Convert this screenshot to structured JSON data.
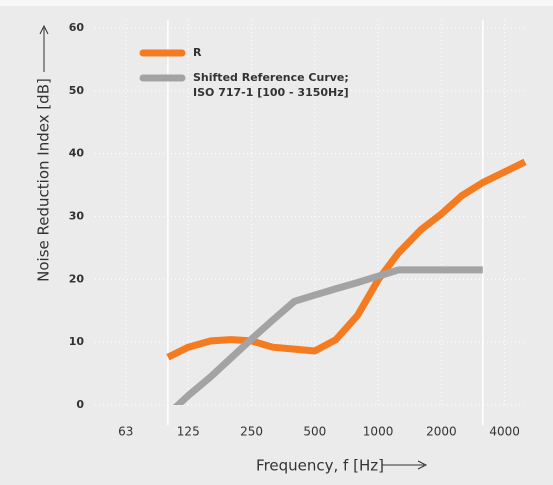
{
  "chart_data": {
    "type": "line",
    "x_label": "Frequency, f [Hz]",
    "y_label": "Noise Reduction Index [dB]",
    "x": [
      100,
      125,
      160,
      200,
      250,
      315,
      400,
      500,
      630,
      800,
      1000,
      1250,
      1600,
      2000,
      2500,
      3150,
      4000,
      5000
    ],
    "series": [
      {
        "name": "R",
        "color": "#f47b20",
        "values": [
          7.6,
          9.2,
          10.2,
          10.4,
          10.2,
          9.2,
          8.9,
          8.6,
          10.4,
          14.3,
          19.9,
          24.2,
          27.9,
          30.4,
          33.3,
          35.4,
          37.1,
          38.7
        ]
      },
      {
        "name": "Shifted Reference Curve; ISO 717-1 [100 - 3150Hz]",
        "color": "#a3a3a3",
        "values": [
          -1.5,
          1.5,
          4.5,
          7.5,
          10.5,
          13.5,
          16.5,
          17.5,
          18.5,
          19.5,
          20.5,
          21.5,
          21.5,
          21.5,
          21.5,
          21.5,
          null,
          null
        ]
      }
    ],
    "x_scale": "log",
    "xlim": [
      45,
      5000
    ],
    "xticks": [
      63,
      125,
      250,
      500,
      1000,
      2000,
      4000
    ],
    "ylim": [
      0,
      60
    ],
    "yticks": [
      0,
      10,
      20,
      30,
      40,
      50,
      60
    ],
    "range_lines": [
      100,
      3150
    ],
    "grid": true,
    "legend": "top-left"
  }
}
